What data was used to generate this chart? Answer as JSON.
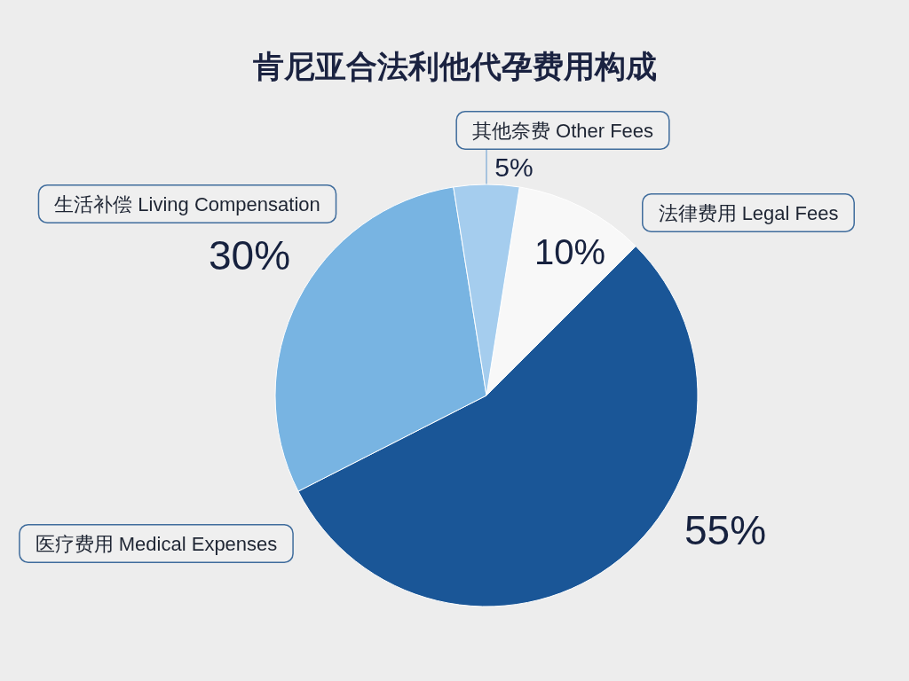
{
  "chart_data": {
    "type": "pie",
    "title": "肯尼亚合法利他代孕费用构成",
    "categories": [
      "法律费用 Legal Fees",
      "医疗费用 Medical Expenses",
      "生活补偿 Living Compensation",
      "其他奈费 Other Fees"
    ],
    "values": [
      10,
      55,
      30,
      5
    ],
    "colors": [
      "#f8f8f8",
      "#1a5697",
      "#78b4e2",
      "#a5cdee"
    ],
    "value_labels": [
      "10%",
      "55%",
      "30%",
      "5%"
    ]
  }
}
